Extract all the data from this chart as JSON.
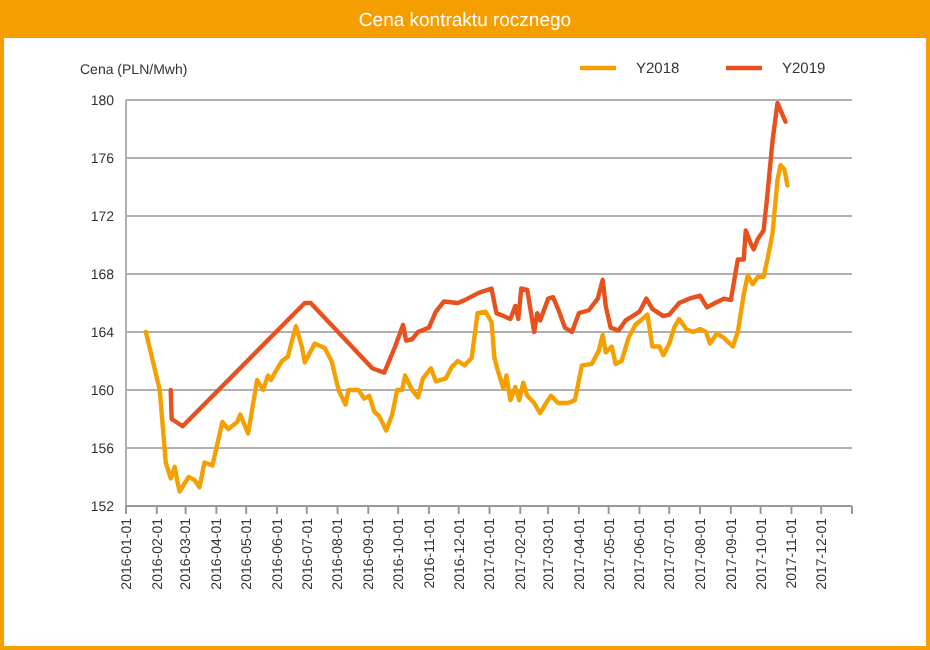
{
  "chart_data": {
    "type": "line",
    "title": "Cena kontraktu  rocznego",
    "ylabel": "Cena (PLN/Mwh)",
    "xlim": [
      "2016-01-01",
      "2018-01-01"
    ],
    "xticks": [
      "2016-01-01",
      "2016-02-01",
      "2016-03-01",
      "2016-04-01",
      "2016-05-01",
      "2016-06-01",
      "2016-07-01",
      "2016-08-01",
      "2016-09-01",
      "2016-10-01",
      "2016-11-01",
      "2016-12-01",
      "2017-01-01",
      "2017-02-01",
      "2017-03-01",
      "2017-04-01",
      "2017-05-01",
      "2017-06-01",
      "2017-07-01",
      "2017-08-01",
      "2017-09-01",
      "2017-10-01",
      "2017-11-01",
      "2017-12-01",
      {
        "value": "2018-01-01",
        "label": null
      }
    ],
    "ylim": [
      152,
      180
    ],
    "yticks": [
      152,
      156,
      160,
      164,
      168,
      172,
      176,
      180
    ],
    "grid": "y",
    "legend": "top right",
    "line_style": "solid",
    "series": [
      {
        "name": "Y2018",
        "color": "#f5a000",
        "x": [
          "2016-01-21",
          "2016-02-04",
          "2016-02-10",
          "2016-02-15",
          "2016-02-19",
          "2016-02-22",
          "2016-02-24",
          "2016-03-04",
          "2016-03-10",
          "2016-03-15",
          "2016-03-20",
          "2016-03-28",
          "2016-04-07",
          "2016-04-13",
          "2016-04-22",
          "2016-04-25",
          "2016-05-03",
          "2016-05-12",
          "2016-05-18",
          "2016-05-23",
          "2016-05-26",
          "2016-05-30",
          "2016-06-06",
          "2016-06-12",
          "2016-06-20",
          "2016-06-26",
          "2016-06-29",
          "2016-07-02",
          "2016-07-09",
          "2016-07-19",
          "2016-07-26",
          "2016-08-02",
          "2016-08-09",
          "2016-08-12",
          "2016-08-22",
          "2016-08-28",
          "2016-09-02",
          "2016-09-07",
          "2016-09-12",
          "2016-09-19",
          "2016-09-25",
          "2016-09-30",
          "2016-10-05",
          "2016-10-08",
          "2016-10-15",
          "2016-10-21",
          "2016-10-26",
          "2016-11-03",
          "2016-11-08",
          "2016-11-18",
          "2016-11-24",
          "2016-11-30",
          "2016-12-07",
          "2016-12-14",
          "2016-12-20",
          "2016-12-28",
          "2017-01-03",
          "2017-01-06",
          "2017-01-10",
          "2017-01-15",
          "2017-01-18",
          "2017-01-22",
          "2017-01-27",
          "2017-01-31",
          "2017-02-04",
          "2017-02-08",
          "2017-02-15",
          "2017-02-21",
          "2017-02-27",
          "2017-03-04",
          "2017-03-11",
          "2017-03-21",
          "2017-03-28",
          "2017-04-04",
          "2017-04-14",
          "2017-04-21",
          "2017-04-25",
          "2017-04-28",
          "2017-05-04",
          "2017-05-08",
          "2017-05-14",
          "2017-05-21",
          "2017-05-28",
          "2017-06-04",
          "2017-06-09",
          "2017-06-14",
          "2017-06-21",
          "2017-06-25",
          "2017-07-01",
          "2017-07-06",
          "2017-07-11",
          "2017-07-18",
          "2017-07-25",
          "2017-08-01",
          "2017-08-07",
          "2017-08-11",
          "2017-08-18",
          "2017-08-25",
          "2017-09-03",
          "2017-09-08",
          "2017-09-14",
          "2017-09-18",
          "2017-09-23",
          "2017-09-28",
          "2017-10-04",
          "2017-10-09",
          "2017-10-13",
          "2017-10-18",
          "2017-10-21",
          "2017-10-25",
          "2017-10-28"
        ],
        "values": [
          164,
          160,
          155,
          153.9,
          154.7,
          153.6,
          153,
          154,
          153.8,
          153.3,
          155,
          154.8,
          157.8,
          157.3,
          157.8,
          158.3,
          157,
          160.7,
          160,
          161,
          160.7,
          161.2,
          162,
          162.3,
          164.4,
          163,
          161.9,
          162.3,
          163.2,
          162.9,
          162,
          160,
          159,
          160,
          160,
          159.4,
          159.6,
          158.5,
          158.2,
          157.2,
          158.3,
          160,
          160,
          161,
          160,
          159.5,
          160.8,
          161.5,
          160.6,
          160.8,
          161.6,
          162,
          161.7,
          162.2,
          165.3,
          165.4,
          164.7,
          162.2,
          161.2,
          160.1,
          161,
          159.3,
          160.2,
          159.3,
          160.5,
          159.6,
          159.1,
          158.4,
          159.1,
          159.6,
          159.1,
          159.1,
          159.3,
          161.7,
          161.8,
          162.7,
          163.8,
          162.6,
          163,
          161.8,
          162,
          163.6,
          164.5,
          164.9,
          165.2,
          163,
          163,
          162.4,
          163.2,
          164.3,
          164.9,
          164.2,
          164,
          164.2,
          164,
          163.2,
          163.9,
          163.6,
          163,
          164,
          166.6,
          167.9,
          167.3,
          167.8,
          167.8,
          169.4,
          170.8,
          174.5,
          175.5,
          175.2,
          174.1
        ]
      },
      {
        "name": "Y2019",
        "color": "#e8501e",
        "x": [
          "2016-02-15",
          "2016-02-16",
          "2016-02-27",
          "2016-06-29",
          "2016-07-05",
          "2016-09-05",
          "2016-09-17",
          "2016-09-28",
          "2016-10-06",
          "2016-10-09",
          "2016-10-15",
          "2016-10-21",
          "2016-11-01",
          "2016-11-08",
          "2016-11-16",
          "2016-11-30",
          "2016-12-07",
          "2016-12-21",
          "2017-01-03",
          "2017-01-08",
          "2017-01-15",
          "2017-01-22",
          "2017-01-27",
          "2017-01-30",
          "2017-02-02",
          "2017-02-08",
          "2017-02-15",
          "2017-02-18",
          "2017-02-21",
          "2017-03-01",
          "2017-03-06",
          "2017-03-11",
          "2017-03-18",
          "2017-03-25",
          "2017-04-01",
          "2017-04-11",
          "2017-04-20",
          "2017-04-25",
          "2017-04-28",
          "2017-05-03",
          "2017-05-11",
          "2017-05-18",
          "2017-05-25",
          "2017-06-01",
          "2017-06-08",
          "2017-06-14",
          "2017-06-25",
          "2017-07-01",
          "2017-07-11",
          "2017-07-21",
          "2017-08-01",
          "2017-08-08",
          "2017-08-16",
          "2017-08-25",
          "2017-09-01",
          "2017-09-08",
          "2017-09-14",
          "2017-09-16",
          "2017-09-21",
          "2017-09-24",
          "2017-09-28",
          "2017-10-04",
          "2017-10-08",
          "2017-10-13",
          "2017-10-18",
          "2017-10-21",
          "2017-10-26"
        ],
        "values": [
          160,
          158,
          157.5,
          166,
          166,
          161.5,
          161.2,
          163,
          164.5,
          163.4,
          163.5,
          164,
          164.3,
          165.4,
          166.1,
          166,
          166.2,
          166.7,
          167,
          165.3,
          165.1,
          164.9,
          165.8,
          164.9,
          167,
          166.9,
          164,
          165.3,
          164.8,
          166.3,
          166.4,
          165.6,
          164.3,
          164,
          165.3,
          165.5,
          166.3,
          167.6,
          165.8,
          164.3,
          164.1,
          164.8,
          165.1,
          165.4,
          166.3,
          165.6,
          165.1,
          165.2,
          166,
          166.3,
          166.5,
          165.7,
          166,
          166.3,
          166.2,
          169,
          169,
          171,
          170.1,
          169.7,
          170.4,
          171,
          173.6,
          177.2,
          179.8,
          179.3,
          178.5
        ]
      }
    ]
  }
}
